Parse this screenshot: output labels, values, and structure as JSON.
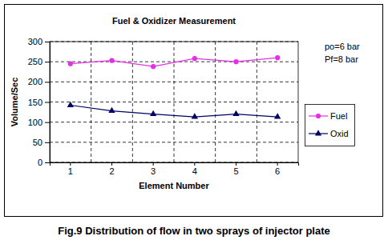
{
  "chart_data": {
    "type": "line",
    "title": "Fuel & Oxidizer Measurement",
    "y_label": "Volume/Sec",
    "x_label": "Element Number",
    "annotations": [
      "po=6 bar",
      "Pf=8 bar"
    ],
    "caption": "Fig.9 Distribution of flow in two sprays of injector plate",
    "categories": [
      "1",
      "2",
      "3",
      "4",
      "5",
      "6"
    ],
    "series": [
      {
        "name": "Fuel",
        "color": "#e62ee6",
        "marker": "circle",
        "values": [
          245,
          253,
          238,
          258,
          250,
          260
        ]
      },
      {
        "name": "Oxid",
        "color": "#000066",
        "marker": "triangle",
        "values": [
          142,
          128,
          120,
          113,
          120,
          113
        ]
      }
    ],
    "ylim": [
      0,
      300
    ],
    "yticks": [
      0,
      50,
      100,
      150,
      200,
      250,
      300
    ],
    "grid": true,
    "legend": "right"
  }
}
